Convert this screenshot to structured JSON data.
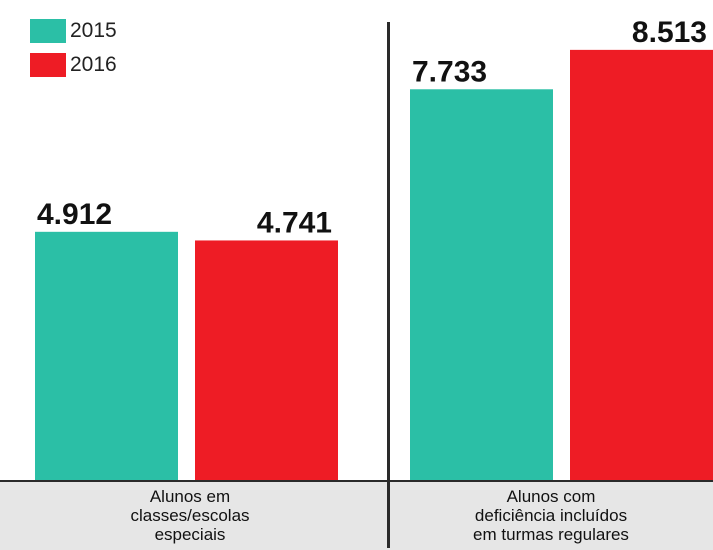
{
  "chart_data": {
    "type": "bar",
    "categories": [
      "Alunos em classes/escolas especiais",
      "Alunos com deficiência incluídos em turmas regulares"
    ],
    "category_lines": [
      [
        "Alunos em",
        "classes/escolas",
        "especiais"
      ],
      [
        "Alunos com",
        "deficiência incluídos",
        "em turmas regulares"
      ]
    ],
    "series": [
      {
        "name": "2015",
        "color": "#2bbfa6",
        "values": [
          4912,
          7733
        ],
        "labels": [
          "4.912",
          "7.733"
        ]
      },
      {
        "name": "2016",
        "color": "#ee1c25",
        "values": [
          4741,
          8513
        ],
        "labels": [
          "4.741",
          "8.513"
        ]
      }
    ],
    "ylim": [
      0,
      9500
    ],
    "grid": false,
    "legend_position": "top-left"
  }
}
